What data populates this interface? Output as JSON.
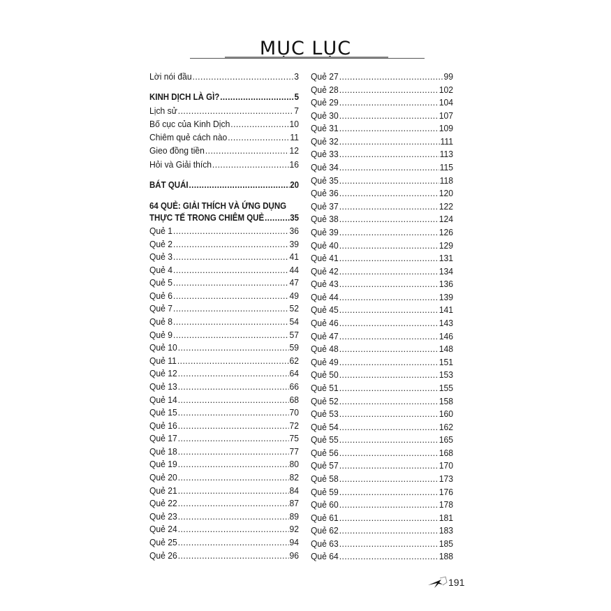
{
  "title": "MỤC LỤC",
  "intro": [
    {
      "label": "Lời nói đầu",
      "page": "3",
      "bold": false
    },
    {
      "label": "KINH DỊCH LÀ GÌ?",
      "page": "5",
      "bold": true
    },
    {
      "label": "Lịch sử",
      "page": "7",
      "bold": false
    },
    {
      "label": "Bố cục của Kinh Dịch",
      "page": "10",
      "bold": false
    },
    {
      "label": "Chiêm quẻ cách nào",
      "page": "11",
      "bold": false
    },
    {
      "label": "Gieo đồng tiền ",
      "page": "12",
      "bold": false
    },
    {
      "label": "Hỏi và Giải thích",
      "page": "16",
      "bold": false
    },
    {
      "label": "BÁT QUÁI",
      "page": "20",
      "bold": true
    }
  ],
  "section64": {
    "line1": "64 QUẺ: GIẢI THÍCH VÀ ỨNG DỤNG",
    "line2": "THỰC TẾ TRONG CHIÊM QUẺ",
    "page": "35"
  },
  "hexagrams": [
    {
      "label": "Quẻ 1",
      "page": "36"
    },
    {
      "label": "Quẻ 2",
      "page": "39"
    },
    {
      "label": "Quẻ 3",
      "page": "41"
    },
    {
      "label": "Quẻ 4",
      "page": "44"
    },
    {
      "label": "Quẻ 5",
      "page": "47"
    },
    {
      "label": "Quẻ 6",
      "page": "49"
    },
    {
      "label": "Quẻ 7",
      "page": "52"
    },
    {
      "label": "Quẻ 8",
      "page": "54"
    },
    {
      "label": "Quẻ 9",
      "page": "57"
    },
    {
      "label": "Quẻ 10",
      "page": "59"
    },
    {
      "label": "Quẻ 11",
      "page": "62"
    },
    {
      "label": "Quẻ 12",
      "page": "64"
    },
    {
      "label": "Quẻ 13",
      "page": "66"
    },
    {
      "label": "Quẻ 14",
      "page": "68"
    },
    {
      "label": "Quẻ 15",
      "page": "70"
    },
    {
      "label": "Quẻ 16",
      "page": "72"
    },
    {
      "label": "Quẻ 17",
      "page": "75"
    },
    {
      "label": "Quẻ 18",
      "page": "77"
    },
    {
      "label": "Quẻ 19",
      "page": "80"
    },
    {
      "label": "Quẻ 20",
      "page": "82"
    },
    {
      "label": "Quẻ 21",
      "page": "84"
    },
    {
      "label": "Quẻ 22",
      "page": "87"
    },
    {
      "label": "Quẻ 23",
      "page": "89"
    },
    {
      "label": "Quẻ 24",
      "page": "92"
    },
    {
      "label": "Quẻ 25",
      "page": "94"
    },
    {
      "label": "Quẻ 26",
      "page": "96"
    },
    {
      "label": "Quẻ 27",
      "page": "99"
    },
    {
      "label": "Quẻ 28",
      "page": "102"
    },
    {
      "label": "Quẻ 29",
      "page": "104"
    },
    {
      "label": "Quẻ 30",
      "page": "107"
    },
    {
      "label": "Quẻ 31",
      "page": "109"
    },
    {
      "label": "Quẻ 32",
      "page": "111"
    },
    {
      "label": "Quẻ 33",
      "page": "113"
    },
    {
      "label": "Quẻ 34",
      "page": "115"
    },
    {
      "label": "Quẻ 35",
      "page": "118"
    },
    {
      "label": "Quẻ 36",
      "page": "120"
    },
    {
      "label": "Quẻ 37",
      "page": "122"
    },
    {
      "label": "Quẻ 38",
      "page": "124"
    },
    {
      "label": "Quẻ 39",
      "page": "126"
    },
    {
      "label": "Quẻ 40",
      "page": "129"
    },
    {
      "label": "Quẻ 41",
      "page": "131"
    },
    {
      "label": "Quẻ 42",
      "page": "134"
    },
    {
      "label": "Quẻ 43",
      "page": "136"
    },
    {
      "label": "Quẻ 44",
      "page": "139"
    },
    {
      "label": "Quẻ 45",
      "page": "141"
    },
    {
      "label": "Quẻ 46",
      "page": "143"
    },
    {
      "label": "Quẻ 47",
      "page": "146"
    },
    {
      "label": "Quẻ 48",
      "page": "148"
    },
    {
      "label": "Quẻ 49",
      "page": "151"
    },
    {
      "label": "Quẻ 50",
      "page": "153"
    },
    {
      "label": "Quẻ 51",
      "page": "155"
    },
    {
      "label": "Quẻ 52",
      "page": "158"
    },
    {
      "label": "Quẻ 53",
      "page": "160"
    },
    {
      "label": "Quẻ 54",
      "page": "162"
    },
    {
      "label": "Quẻ 55",
      "page": "165"
    },
    {
      "label": "Quẻ 56",
      "page": "168"
    },
    {
      "label": "Quẻ 57",
      "page": "170"
    },
    {
      "label": "Quẻ 58",
      "page": "173"
    },
    {
      "label": "Quẻ 59",
      "page": "176"
    },
    {
      "label": "Quẻ 60",
      "page": "178"
    },
    {
      "label": "Quẻ 61",
      "page": "181"
    },
    {
      "label": "Quẻ 62",
      "page": "183"
    },
    {
      "label": "Quẻ 63",
      "page": "185"
    },
    {
      "label": "Quẻ 64",
      "page": "188"
    }
  ],
  "footer": {
    "page_number": "191",
    "icon": "writing-hand-icon"
  }
}
